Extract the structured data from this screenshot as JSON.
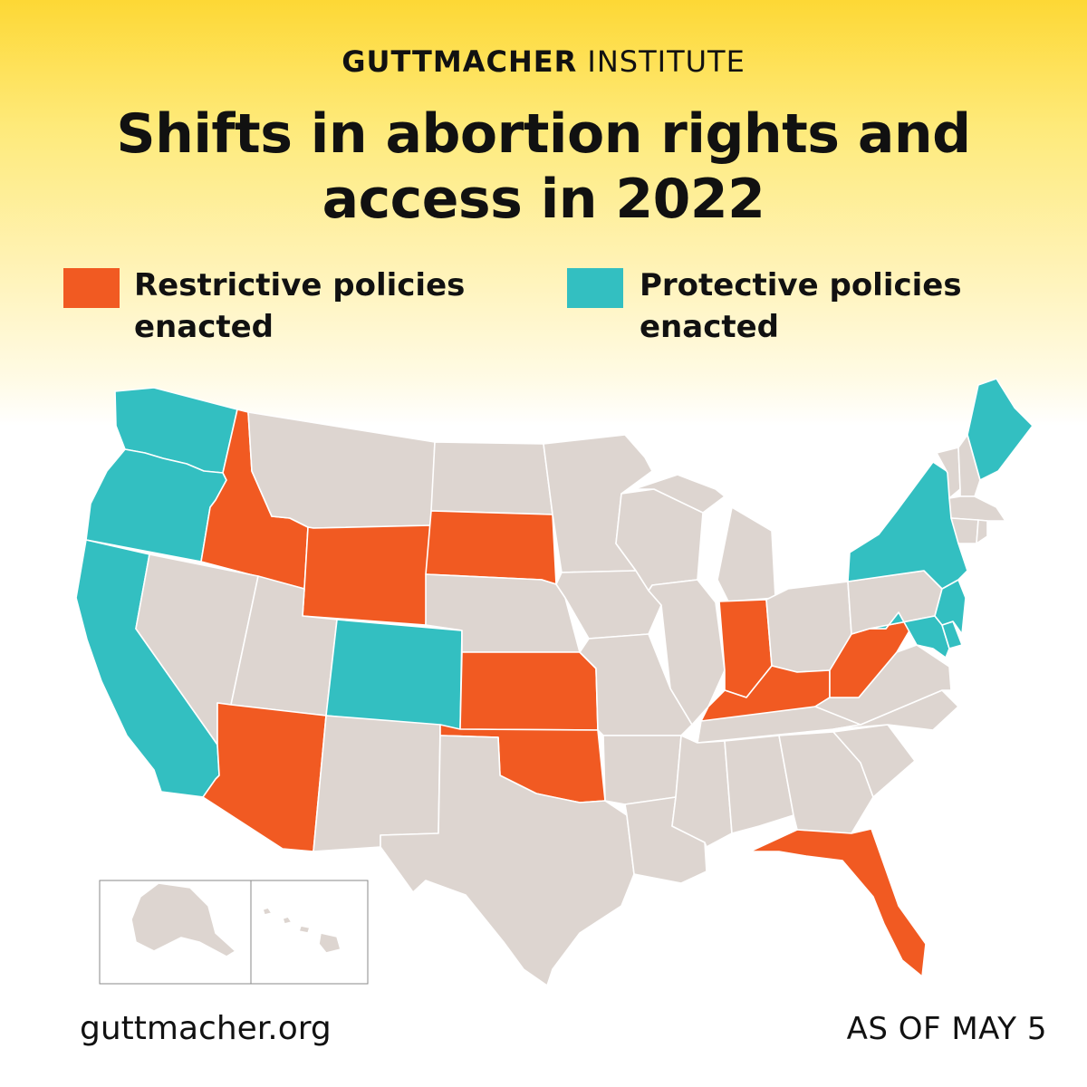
{
  "header": {
    "brand_bold": "GUTTMACHER",
    "brand_light": "INSTITUTE",
    "title_line1": "Shifts in abortion rights and",
    "title_line2": "access in 2022"
  },
  "legend": {
    "restrictive": {
      "line1": "Restrictive policies",
      "line2": "enacted",
      "color": "#f15a22"
    },
    "protective": {
      "line1": "Protective policies",
      "line2": "enacted",
      "color": "#33bfc1"
    }
  },
  "colors": {
    "neutral": "#ddd5d0",
    "border": "#ffffff"
  },
  "map": {
    "restrictive_states": [
      "ID",
      "WY",
      "SD",
      "KS",
      "OK",
      "AZ",
      "IN",
      "KY",
      "WV",
      "FL"
    ],
    "protective_states": [
      "WA",
      "OR",
      "CA",
      "CO",
      "NY",
      "NJ",
      "MD",
      "ME",
      "DE"
    ],
    "no_change_states": [
      "MT",
      "ND",
      "MN",
      "WI",
      "MI",
      "NV",
      "UT",
      "NM",
      "TX",
      "NE",
      "IA",
      "MO",
      "AR",
      "LA",
      "IL",
      "MS",
      "AL",
      "GA",
      "SC",
      "NC",
      "TN",
      "VA",
      "OH",
      "PA",
      "VT",
      "NH",
      "MA",
      "CT",
      "RI",
      "AK",
      "HI"
    ]
  },
  "footer": {
    "url": "guttmacher.org",
    "date": "AS OF MAY 5"
  }
}
